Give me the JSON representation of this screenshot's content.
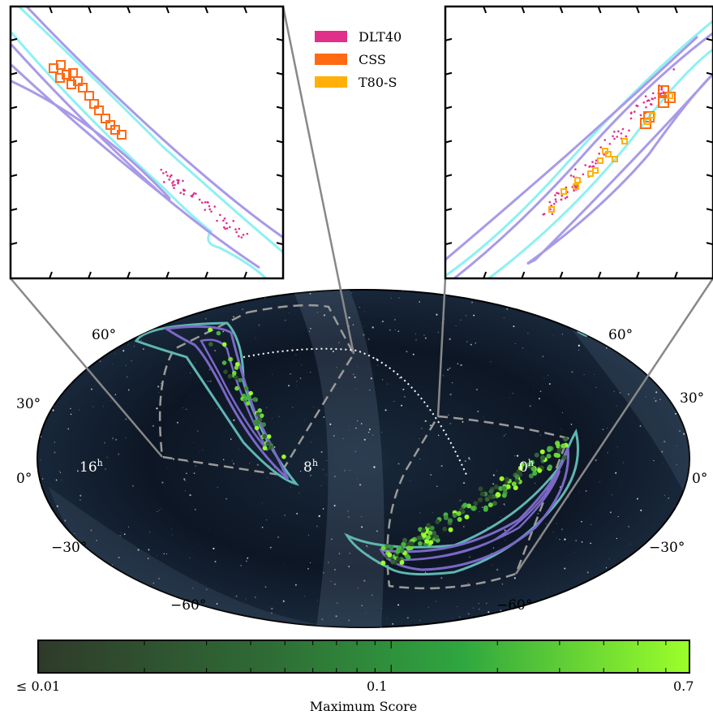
{
  "legend": [
    {
      "label": "DLT40",
      "color": "#e0308a"
    },
    {
      "label": "CSS",
      "color": "#ff6a13"
    },
    {
      "label": "T80-S",
      "color": "#ffb10a"
    }
  ],
  "map": {
    "lat_labels_left": [
      "60°",
      "30°",
      "0°",
      "−30°",
      "−60°"
    ],
    "lat_labels_right": [
      "60°",
      "30°",
      "0°",
      "−30°",
      "−60°"
    ],
    "ra_labels": [
      {
        "h": "16",
        "sup": "h"
      },
      {
        "h": "8",
        "sup": "h"
      },
      {
        "h": "0",
        "sup": "h"
      }
    ]
  },
  "colorbar": {
    "title": "Maximum Score",
    "ticks": [
      "≤ 0.01",
      "0.1",
      "0.7"
    ],
    "color_low": "#2e3d2a",
    "color_high": "#9bff2a"
  }
}
